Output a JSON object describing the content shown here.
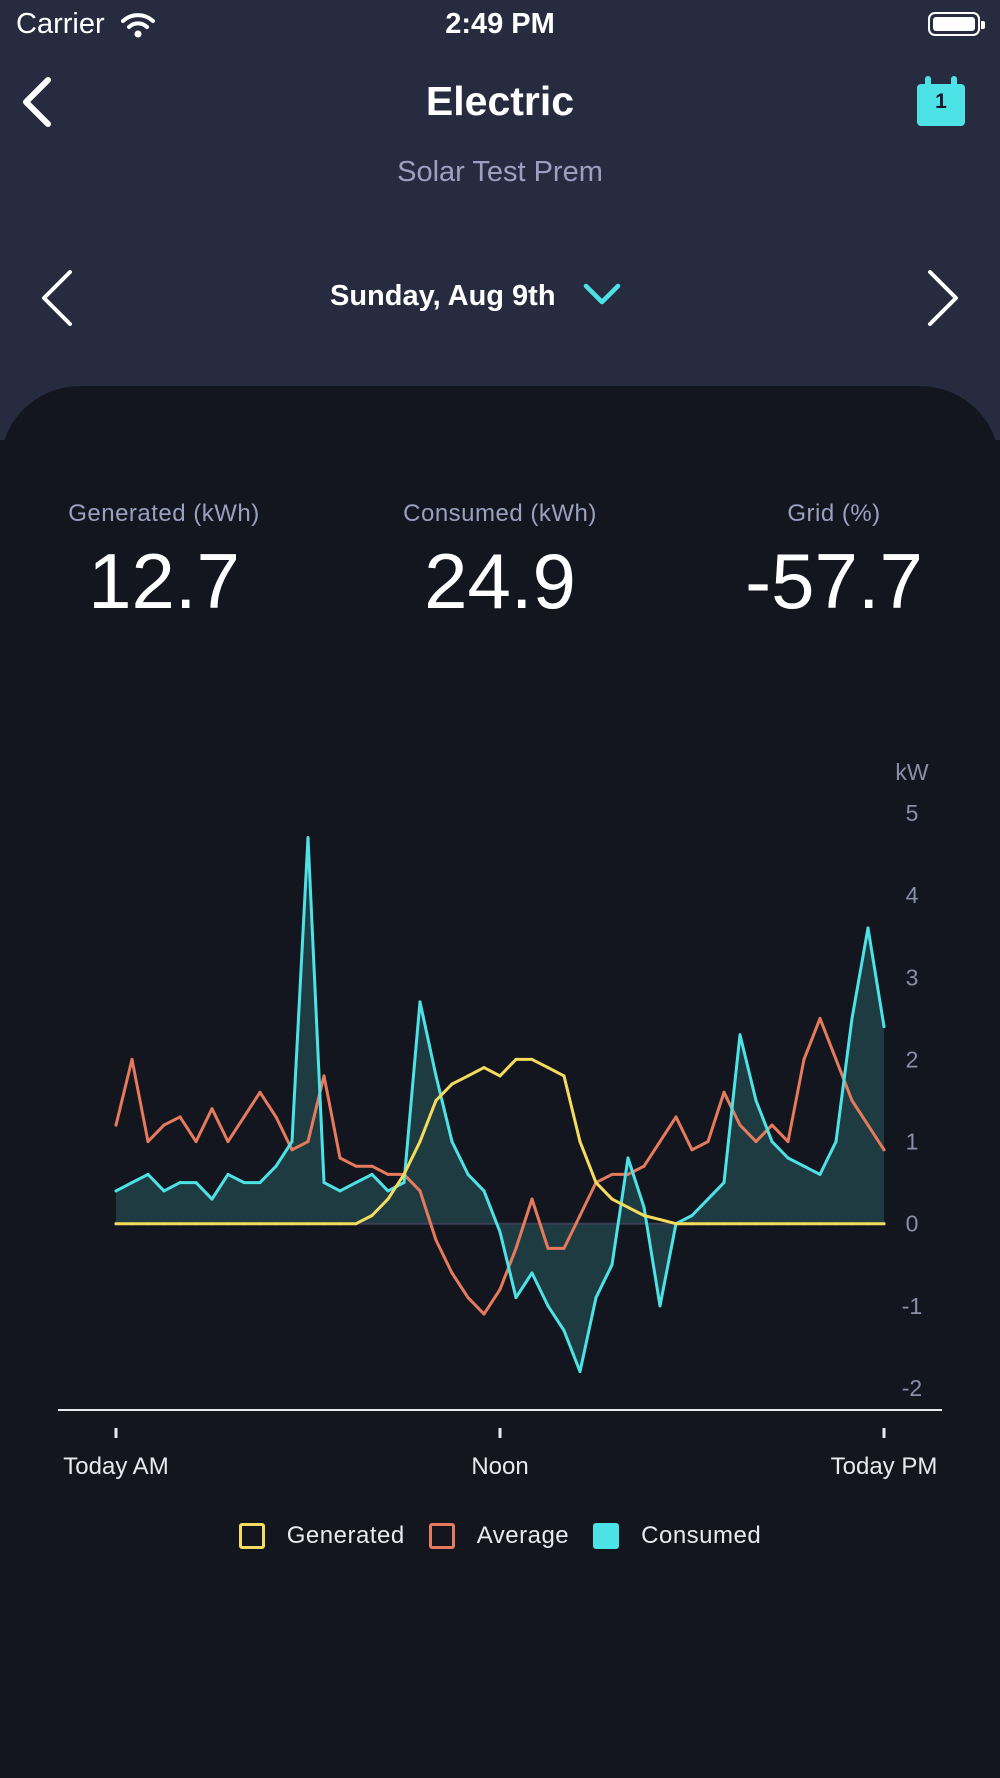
{
  "status_bar": {
    "carrier": "Carrier",
    "time": "2:49 PM"
  },
  "nav": {
    "title": "Electric",
    "subtitle": "Solar Test Prem",
    "calendar_badge": "1"
  },
  "date_selector": {
    "label": "Sunday, Aug 9th"
  },
  "stats": [
    {
      "label": "Generated (kWh)",
      "value": "12.7"
    },
    {
      "label": "Consumed (kWh)",
      "value": "24.9"
    },
    {
      "label": "Grid (%)",
      "value": "-57.7"
    }
  ],
  "colors": {
    "generated": "#f4dc5c",
    "average": "#e57a5c",
    "consumed": "#4de2e6",
    "accent": "#4de2e6",
    "header_bg": "#272b3f",
    "panel_bg": "#14161f"
  },
  "chart_data": {
    "type": "line",
    "ylabel": "kW",
    "ylim": [
      -2,
      5
    ],
    "yticks": [
      "5",
      "4",
      "3",
      "2",
      "1",
      "0",
      "-1",
      "-2"
    ],
    "xticks": [
      "Today AM",
      "Noon",
      "Today PM"
    ],
    "x": [
      0,
      0.5,
      1,
      1.5,
      2,
      2.5,
      3,
      3.5,
      4,
      4.5,
      5,
      5.5,
      6,
      6.5,
      7,
      7.5,
      8,
      8.5,
      9,
      9.5,
      10,
      10.5,
      11,
      11.5,
      12,
      12.5,
      13,
      13.5,
      14,
      14.5,
      15,
      15.5,
      16,
      16.5,
      17,
      17.5,
      18,
      18.5,
      19,
      19.5,
      20,
      20.5,
      21,
      21.5,
      22,
      22.5,
      23,
      23.5,
      24
    ],
    "series": [
      {
        "name": "Generated",
        "style": "line",
        "values": [
          0,
          0,
          0,
          0,
          0,
          0,
          0,
          0,
          0,
          0,
          0,
          0,
          0,
          0,
          0,
          0,
          0.1,
          0.3,
          0.6,
          1.0,
          1.5,
          1.7,
          1.8,
          1.9,
          1.8,
          2.0,
          2.0,
          1.9,
          1.8,
          1.0,
          0.5,
          0.3,
          0.2,
          0.1,
          0.05,
          0,
          0,
          0,
          0,
          0,
          0,
          0,
          0,
          0,
          0,
          0,
          0,
          0,
          0
        ]
      },
      {
        "name": "Average",
        "style": "line",
        "values": [
          1.2,
          2.0,
          1.0,
          1.2,
          1.3,
          1.0,
          1.4,
          1.0,
          1.3,
          1.6,
          1.3,
          0.9,
          1.0,
          1.8,
          0.8,
          0.7,
          0.7,
          0.6,
          0.6,
          0.4,
          -0.2,
          -0.6,
          -0.9,
          -1.1,
          -0.8,
          -0.3,
          0.3,
          -0.3,
          -0.3,
          0.1,
          0.5,
          0.6,
          0.6,
          0.7,
          1.0,
          1.3,
          0.9,
          1.0,
          1.6,
          1.2,
          1.0,
          1.2,
          1.0,
          2.0,
          2.5,
          2.0,
          1.5,
          1.2,
          0.9
        ]
      },
      {
        "name": "Consumed",
        "style": "area",
        "values": [
          0.4,
          0.5,
          0.6,
          0.4,
          0.5,
          0.5,
          0.3,
          0.6,
          0.5,
          0.5,
          0.7,
          1.0,
          4.7,
          0.5,
          0.4,
          0.5,
          0.6,
          0.4,
          0.5,
          2.7,
          1.8,
          1.0,
          0.6,
          0.4,
          -0.1,
          -0.9,
          -0.6,
          -1.0,
          -1.3,
          -1.8,
          -0.9,
          -0.5,
          0.8,
          0.2,
          -1.0,
          0.0,
          0.1,
          0.3,
          0.5,
          2.3,
          1.5,
          1.0,
          0.8,
          0.7,
          0.6,
          1.0,
          2.5,
          3.6,
          2.4
        ]
      }
    ]
  },
  "legend": [
    {
      "label": "Generated",
      "filled": false
    },
    {
      "label": "Average",
      "filled": false
    },
    {
      "label": "Consumed",
      "filled": true
    }
  ]
}
